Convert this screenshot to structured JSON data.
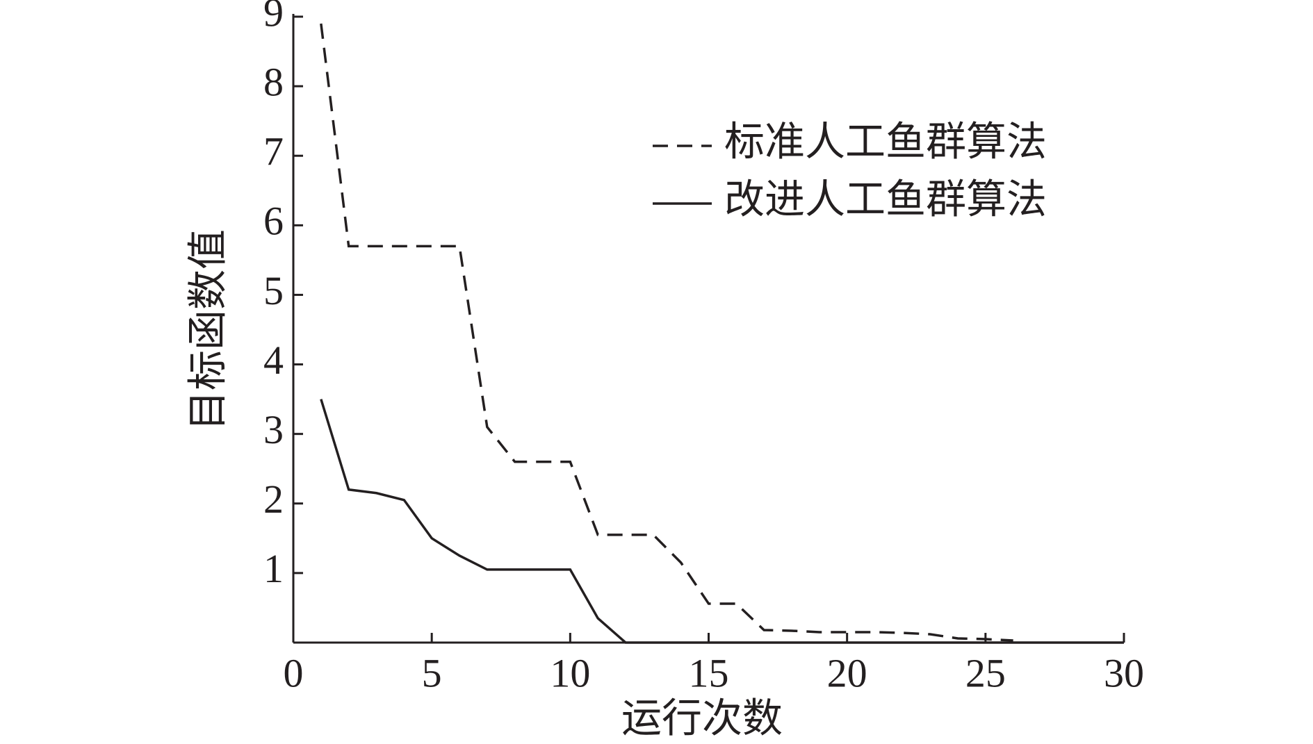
{
  "chart_data": {
    "type": "line",
    "xlabel": "运行次数",
    "ylabel": "目标函数值",
    "x": [
      1,
      2,
      3,
      4,
      5,
      6,
      7,
      8,
      9,
      10,
      11,
      12,
      13,
      14,
      15,
      16,
      17,
      18,
      19,
      20,
      21,
      22,
      23,
      24,
      25,
      26,
      27,
      28,
      29,
      30
    ],
    "series": [
      {
        "name": "标准人工鱼群算法",
        "color": "#231f20",
        "linestyle": "dashed",
        "values": [
          8.9,
          5.7,
          5.7,
          5.7,
          5.7,
          5.7,
          3.1,
          2.6,
          2.6,
          2.6,
          1.55,
          1.55,
          1.55,
          1.15,
          0.56,
          0.56,
          0.18,
          0.17,
          0.15,
          0.15,
          0.15,
          0.14,
          0.12,
          0.06,
          0.05,
          0.03,
          null,
          null,
          null,
          null
        ]
      },
      {
        "name": "改进人工鱼群算法",
        "color": "#231f20",
        "linestyle": "solid",
        "values": [
          3.5,
          2.2,
          2.15,
          2.05,
          1.5,
          1.25,
          1.05,
          1.05,
          1.05,
          1.05,
          0.35,
          0,
          0,
          0,
          0,
          0,
          0,
          0,
          0,
          0,
          0,
          0,
          0,
          0,
          0,
          0,
          0,
          0,
          0,
          0
        ]
      }
    ],
    "xlim": [
      0,
      30
    ],
    "ylim": [
      0,
      9
    ],
    "xticks": [
      0,
      5,
      10,
      15,
      20,
      25,
      30
    ],
    "yticks": [
      1,
      2,
      3,
      4,
      5,
      6,
      7,
      8,
      9
    ],
    "grid": false,
    "legend": "upper right"
  }
}
